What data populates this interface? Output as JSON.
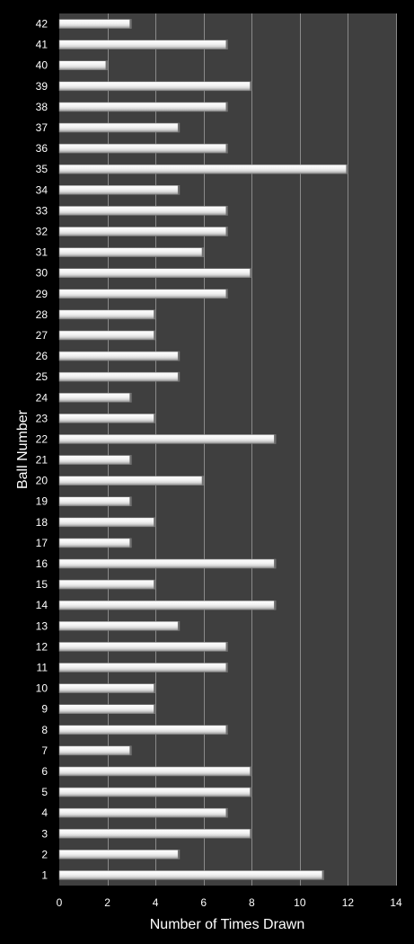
{
  "chart_data": {
    "type": "bar",
    "orientation": "horizontal",
    "xlabel": "Number of Times Drawn",
    "ylabel": "Ball Number",
    "xlim": [
      0,
      14
    ],
    "x_ticks": [
      "0",
      "2",
      "4",
      "6",
      "8",
      "10",
      "12",
      "14"
    ],
    "grid": "vertical major gridlines",
    "legend": "none",
    "categories": [
      "1",
      "2",
      "3",
      "4",
      "5",
      "6",
      "7",
      "8",
      "9",
      "10",
      "11",
      "12",
      "13",
      "14",
      "15",
      "16",
      "17",
      "18",
      "19",
      "20",
      "21",
      "22",
      "23",
      "24",
      "25",
      "26",
      "27",
      "28",
      "29",
      "30",
      "31",
      "32",
      "33",
      "34",
      "35",
      "36",
      "37",
      "38",
      "39",
      "40",
      "41",
      "42"
    ],
    "values": [
      11,
      5,
      8,
      7,
      8,
      8,
      3,
      7,
      4,
      4,
      7,
      7,
      5,
      9,
      4,
      9,
      3,
      4,
      3,
      6,
      3,
      9,
      4,
      3,
      5,
      5,
      4,
      4,
      7,
      8,
      6,
      7,
      7,
      5,
      12,
      7,
      5,
      7,
      8,
      2,
      7,
      3
    ],
    "colors": {
      "background": "#000000",
      "plot_area": "#3f3f3f",
      "gridline": "#8a8a8a",
      "bar_light": "#ffffff",
      "bar_mid": "#d9d9d9",
      "bar_dark": "#8c8c8c",
      "text": "#ffffff"
    }
  }
}
